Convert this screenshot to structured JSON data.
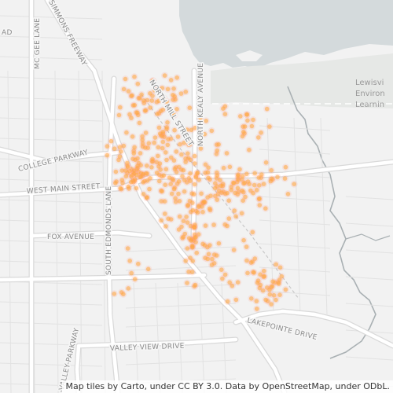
{
  "map": {
    "labels": {
      "mcgee_lane": "MC GEE LANE",
      "simmons_freeway": "SIMMONS FREEWAY",
      "road_fragment": "AD",
      "college_parkway": "COLLEGE PARKWAY",
      "west_main_street": "WEST MAIN STREET",
      "south_edmonds_lane": "SOUTH EDMONDS LANE",
      "fox_avenue": "FOX AVENUE",
      "north_kealy_avenue": "NORTH KEALY AVENUE",
      "north_mill_street": "NORTH MILL STREET",
      "valley_parkway": "-VALLEY-PARKWAY",
      "valley_view_drive": "VALLEY VIEW DRIVE",
      "lakepointe_drive": "LAKEPOINTE DRIVE",
      "lewisville_1": "Lewisvi",
      "lewisville_2": "Environ",
      "lewisville_3": "Learnin"
    },
    "colors": {
      "land": "#f2f2f2",
      "water": "#d4dadc",
      "road": "#ffffff",
      "road_casing": "#dcdcdc",
      "park": "#e6e8e6",
      "point_fill": "#ffa83a",
      "point_glow": "#ff9a8a"
    }
  },
  "attribution": "Map tiles by Carto, under CC BY 3.0. Data by OpenStreetMap, under ODbL."
}
